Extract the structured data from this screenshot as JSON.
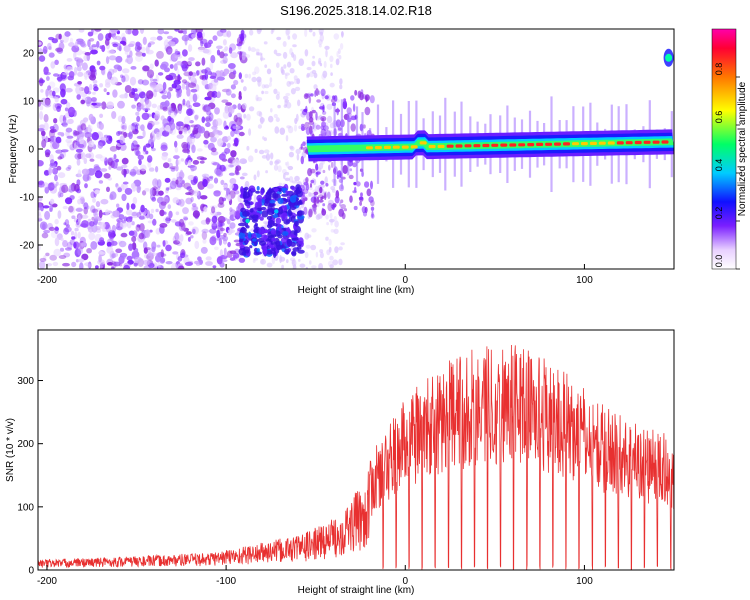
{
  "title": "S196.2025.318.14.02.R18",
  "chart_data": [
    {
      "type": "heatmap",
      "name": "spectrogram",
      "xlabel": "Height of straight line (km)",
      "ylabel": "Frequency (Hz)",
      "xlim": [
        -205,
        150
      ],
      "ylim": [
        -25,
        25
      ],
      "xticks": [
        -200,
        -100,
        0,
        100
      ],
      "yticks": [
        -20,
        -10,
        0,
        10,
        20
      ],
      "colorbar": {
        "label": "Normalized spectral amplitude",
        "range": [
          0,
          1
        ],
        "ticks": [
          0.0,
          0.2,
          0.4,
          0.6,
          0.8
        ],
        "tick_labels": [
          "0.0",
          "0.2",
          "0.4",
          "0.6",
          "0.8"
        ]
      },
      "features": {
        "noise_region_km": [
          -205,
          -55
        ],
        "low_freq_blob": {
          "x_range_km": [
            -92,
            -58
          ],
          "freq_range_hz": [
            -22,
            -8
          ]
        },
        "main_line": {
          "x_range_km": [
            -55,
            150
          ],
          "freq_start_hz": 0,
          "freq_end_hz": 1.5
        },
        "high_freq_spot": {
          "x_km": 147,
          "freq_hz": 19
        }
      }
    },
    {
      "type": "line",
      "name": "snr",
      "xlabel": "Height of straight line (km)",
      "ylabel": "SNR (10 * v/v)",
      "xlim": [
        -205,
        150
      ],
      "ylim": [
        0,
        380
      ],
      "xticks": [
        -200,
        -100,
        0,
        100
      ],
      "yticks": [
        0,
        100,
        200,
        300
      ],
      "color": "#e83030",
      "envelope": {
        "x": [
          -205,
          -150,
          -110,
          -95,
          -70,
          -55,
          -40,
          -25,
          -15,
          0,
          20,
          40,
          55,
          70,
          90,
          110,
          130,
          150
        ],
        "y": [
          15,
          20,
          25,
          32,
          45,
          55,
          75,
          120,
          170,
          230,
          270,
          300,
          305,
          295,
          260,
          220,
          195,
          175
        ]
      }
    }
  ]
}
